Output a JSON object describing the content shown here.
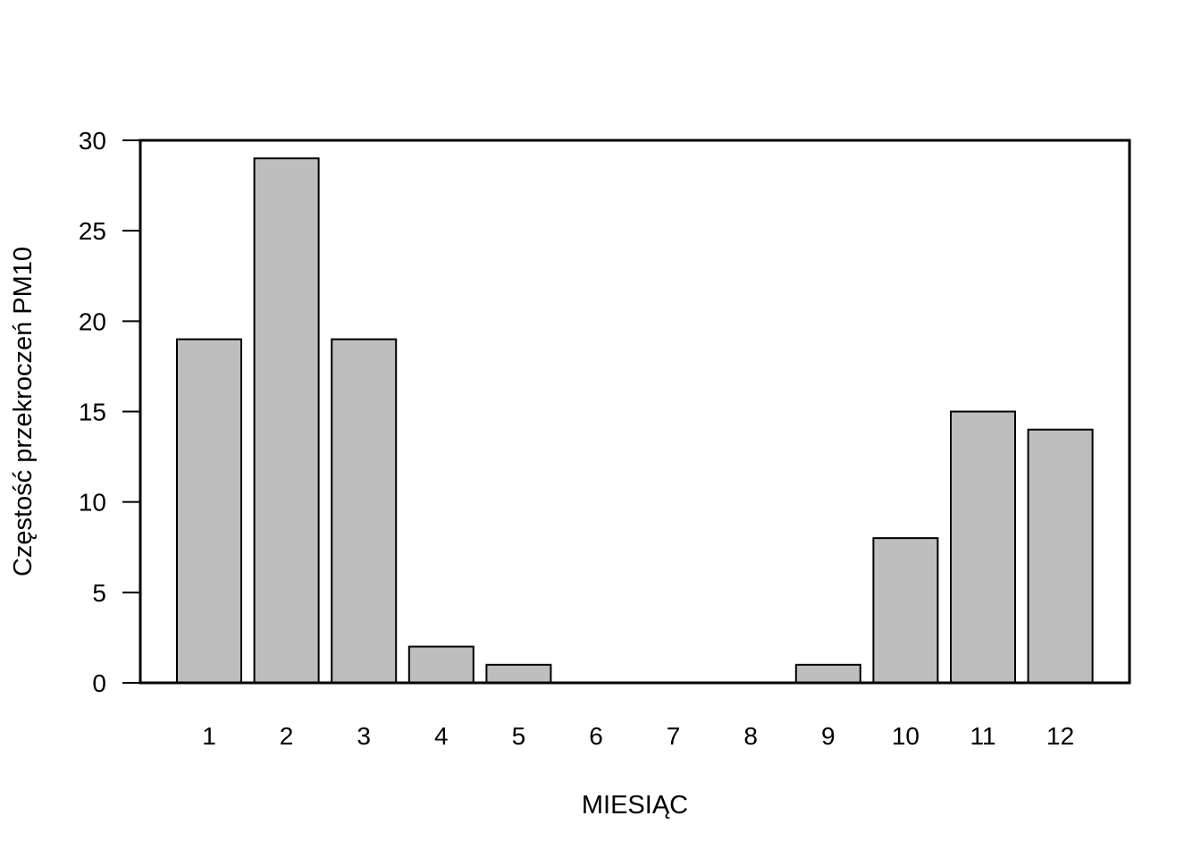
{
  "chart_data": {
    "type": "bar",
    "title": "",
    "xlabel": "MIESIĄC",
    "ylabel": "Częstość przekroczeń PM10",
    "categories": [
      "1",
      "2",
      "3",
      "4",
      "5",
      "6",
      "7",
      "8",
      "9",
      "10",
      "11",
      "12"
    ],
    "values": [
      19,
      29,
      19,
      2,
      1,
      0,
      0,
      0,
      1,
      8,
      15,
      14
    ],
    "ylim": [
      0,
      30
    ],
    "yticks": [
      0,
      5,
      10,
      15,
      20,
      25,
      30
    ],
    "grid": false,
    "box": true,
    "bar_fill": "#bebebe",
    "bar_stroke": "#000000"
  }
}
